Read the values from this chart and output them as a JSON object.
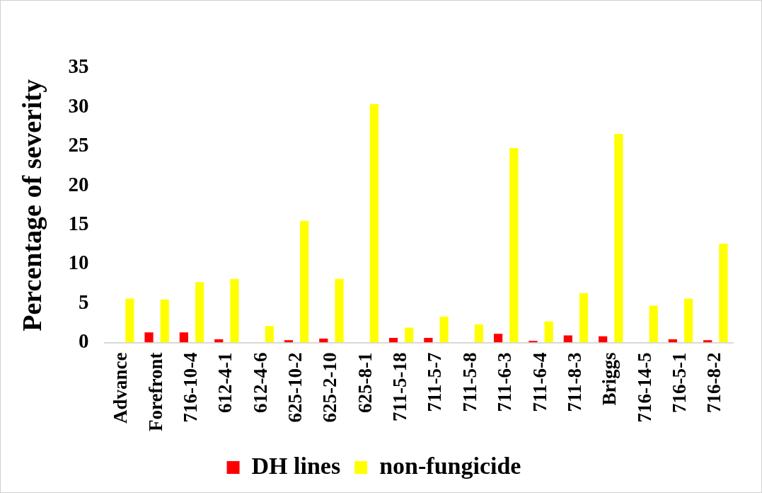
{
  "chart_data": {
    "type": "bar",
    "ylabel": "Percentage of severity",
    "categories": [
      "Advance",
      "Forefront",
      "716-10-4",
      "612-4-1",
      "612-4-6",
      "625-10-2",
      "625-2-10",
      "625-8-1",
      "711-5-18",
      "711-5-7",
      "711-5-8",
      "711-6-3",
      "711-6-4",
      "711-8-3",
      "Briggs",
      "716-14-5",
      "716-5-1",
      "716-8-2"
    ],
    "series": [
      {
        "name": "DH lines",
        "color": "#ff0000",
        "values": [
          null,
          1.3,
          1.3,
          0.4,
          null,
          0.3,
          0.5,
          null,
          0.6,
          0.6,
          null,
          1.1,
          0.2,
          0.9,
          0.8,
          null,
          0.4,
          0.3
        ]
      },
      {
        "name": "non-fungicide",
        "color": "#ffff00",
        "values": [
          5.6,
          5.5,
          7.7,
          8.1,
          2.1,
          15.5,
          8.1,
          30.4,
          1.9,
          3.3,
          2.3,
          24.8,
          2.7,
          6.3,
          26.6,
          4.7,
          5.6,
          12.6
        ]
      }
    ],
    "ylim": [
      0,
      35
    ],
    "yticks": [
      0,
      5,
      10,
      15,
      20,
      25,
      30,
      35
    ],
    "grid": false,
    "legend": "bottom"
  }
}
